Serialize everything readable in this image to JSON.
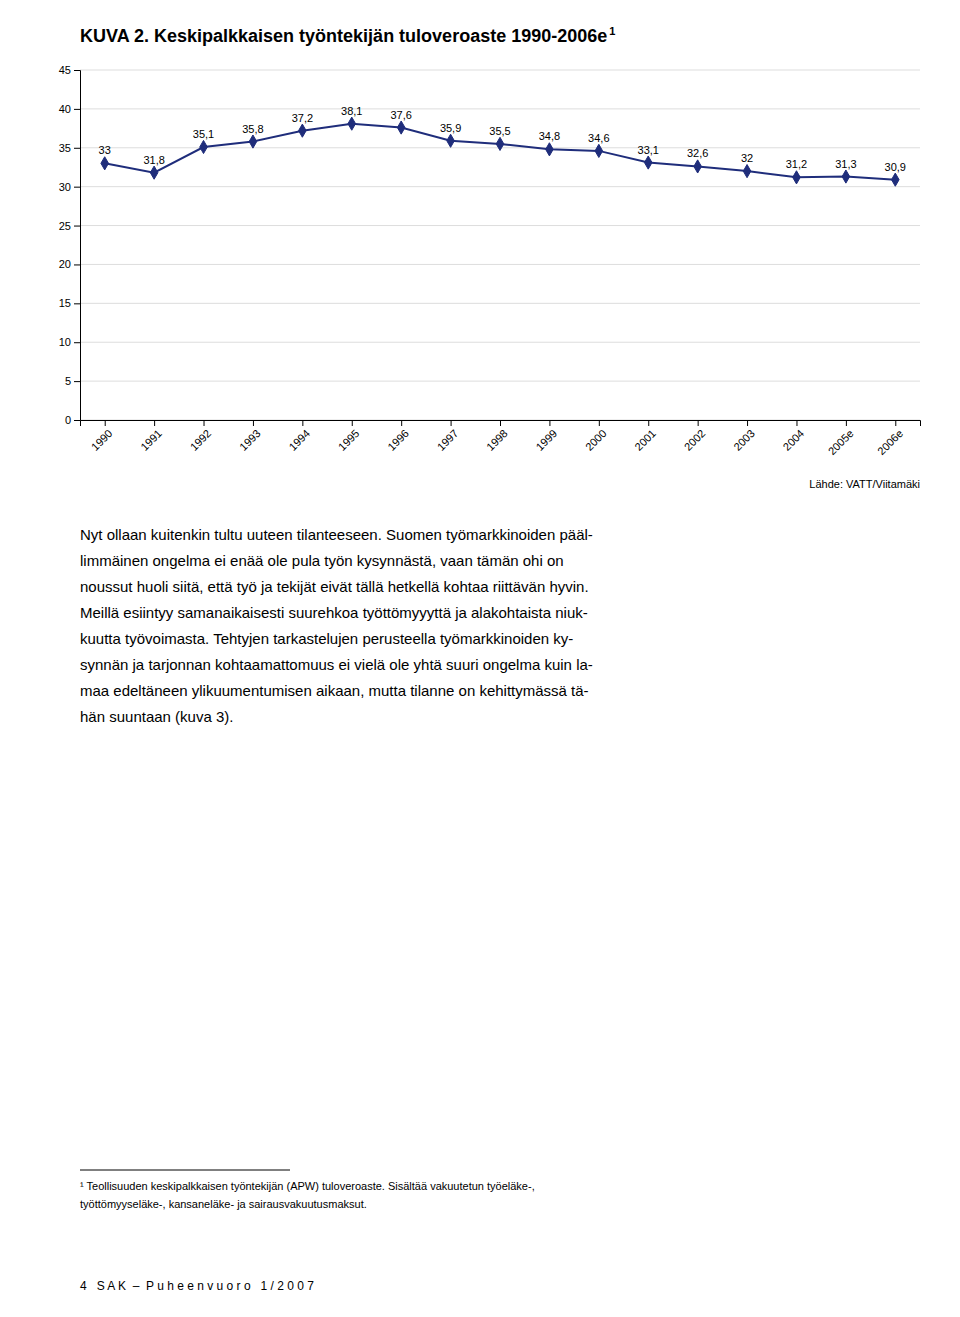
{
  "chart_data": {
    "type": "line",
    "title": "KUVA 2. Keskipalkkaisen työntekijän tuloveroaste 1990-2006e",
    "title_superscript": "1",
    "source": "Lähde: VATT/Viitamäki",
    "categories": [
      "1990",
      "1991",
      "1992",
      "1993",
      "1994",
      "1995",
      "1996",
      "1997",
      "1998",
      "1999",
      "2000",
      "2001",
      "2002",
      "2003",
      "2004",
      "2005e",
      "2006e"
    ],
    "values": [
      33.0,
      31.8,
      35.1,
      35.8,
      37.2,
      38.1,
      37.6,
      35.9,
      35.5,
      34.8,
      34.6,
      33.1,
      32.6,
      32.0,
      31.2,
      31.3,
      30.9
    ],
    "value_labels": [
      "33",
      "31,8",
      "35,1",
      "35,8",
      "37,2",
      "38,1",
      "37,6",
      "35,9",
      "35,5",
      "34,8",
      "34,6",
      "33,1",
      "32,6",
      "32",
      "31,2",
      "31,3",
      "30,9"
    ],
    "color": "#1F2D7B",
    "marker": "diamond",
    "data_labels": true,
    "ylim": [
      0,
      45
    ],
    "yticks": [
      0,
      5,
      10,
      15,
      20,
      25,
      30,
      35,
      40,
      45
    ],
    "grid": true
  },
  "page": {
    "body_lines": [
      "Nyt ollaan kuitenkin tultu uuteen tilanteeseen. Suomen työmarkkinoiden pääl-",
      "limmäinen ongelma ei enää ole pula työn kysynnästä, vaan tämän ohi on",
      "noussut huoli siitä, että työ ja tekijät eivät tällä hetkellä kohtaa riittävän hyvin.",
      "Meillä esiintyy samanaikaisesti suurehkoa työttömyyyttä ja alakohtaista niuk-",
      "kuutta työvoimasta. Tehtyjen tarkastelujen perusteella työmarkkinoiden ky-",
      "synnän ja tarjonnan kohtaamattomuus ei vielä ole yhtä suuri ongelma kuin la-",
      "maa edeltäneen ylikuumentumisen aikaan, mutta tilanne on kehittymässä tä-",
      "hän suuntaan (kuva 3)."
    ],
    "footnotes": [
      "¹ Teollisuuden keskipalkkaisen työntekijän (APW) tuloveroaste. Sisältää vakuutetun työeläke-,",
      "työttömyyseläke-, kansaneläke- ja sairausvakuutusmaksut."
    ],
    "footer": "4   S A K  –  P u h e e n v u o r o   1 / 2 0 0 7"
  }
}
